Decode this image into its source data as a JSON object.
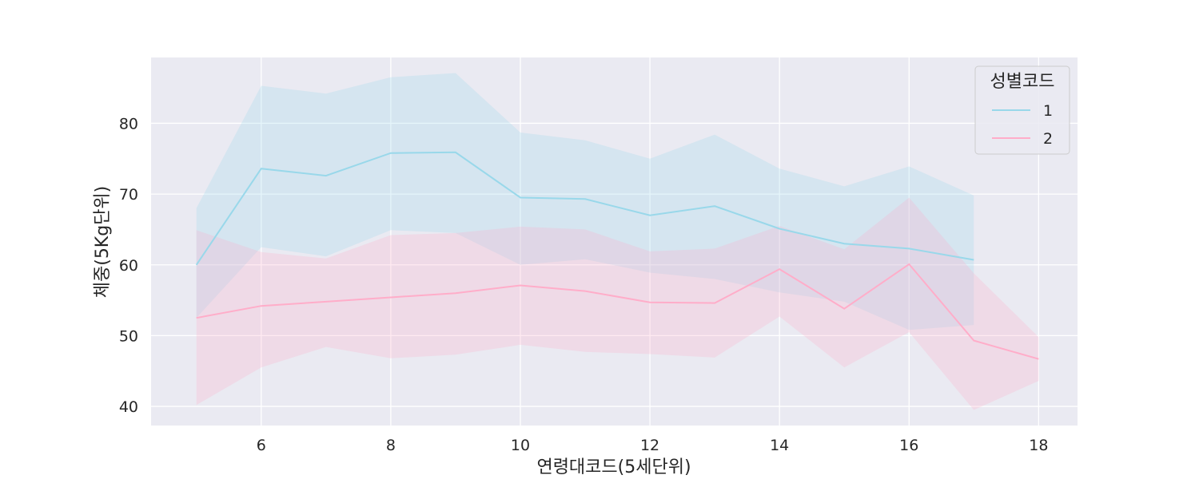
{
  "chart_data": {
    "type": "line",
    "xlabel": "연령대코드(5세단위)",
    "ylabel": "체중(5Kg단위)",
    "xlim": [
      4.3,
      18.6
    ],
    "ylim": [
      37.3,
      89.3
    ],
    "xticks": [
      6,
      8,
      10,
      12,
      14,
      16,
      18
    ],
    "yticks": [
      40,
      50,
      60,
      70,
      80
    ],
    "grid": true,
    "legend": {
      "title": "성별코드",
      "position": "top-right"
    },
    "series": [
      {
        "name": "1",
        "color": "#99d8ea",
        "x": [
          5,
          6,
          7,
          8,
          9,
          10,
          11,
          12,
          13,
          14,
          15,
          16,
          17
        ],
        "y": [
          60.0,
          73.6,
          72.6,
          75.8,
          75.9,
          69.5,
          69.3,
          67.0,
          68.3,
          65.1,
          63.0,
          62.3,
          60.7
        ],
        "ci_low": [
          52.5,
          62.5,
          61.2,
          64.9,
          64.5,
          60.0,
          60.8,
          58.9,
          58.0,
          56.1,
          54.8,
          50.8,
          51.5
        ],
        "ci_high": [
          68.0,
          85.3,
          84.2,
          86.5,
          87.1,
          78.7,
          77.6,
          75.0,
          78.4,
          73.6,
          71.1,
          73.9,
          69.8
        ]
      },
      {
        "name": "2",
        "color": "#ffadc9",
        "x": [
          5,
          6,
          7,
          8,
          9,
          10,
          11,
          12,
          13,
          14,
          15,
          16,
          17,
          18
        ],
        "y": [
          52.5,
          54.2,
          54.8,
          55.4,
          56.0,
          57.1,
          56.3,
          54.7,
          54.6,
          59.4,
          53.8,
          60.1,
          49.3,
          46.7
        ],
        "ci_low": [
          40.2,
          45.5,
          48.4,
          46.8,
          47.3,
          48.7,
          47.7,
          47.4,
          46.9,
          52.7,
          45.5,
          50.5,
          39.5,
          43.6
        ],
        "ci_high": [
          64.9,
          61.8,
          60.9,
          64.2,
          64.5,
          65.4,
          65.0,
          61.9,
          62.3,
          65.5,
          62.2,
          69.5,
          58.8,
          49.8
        ]
      }
    ]
  }
}
